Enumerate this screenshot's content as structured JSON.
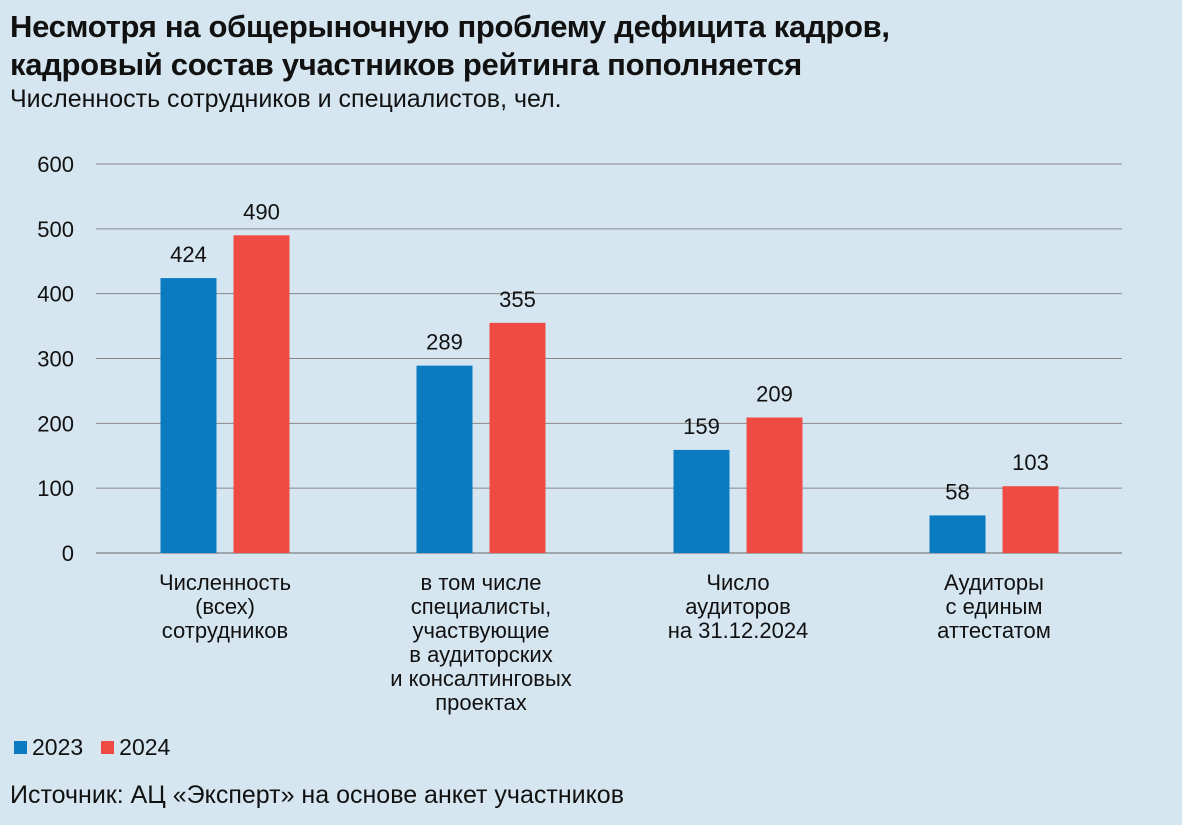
{
  "title_lines": [
    "Несмотря на общерыночную проблему дефицита кадров,",
    "кадровый состав участников рейтинга пополняется"
  ],
  "subtitle": "Численность сотрудников и специалистов, чел.",
  "source": "Источник: АЦ «Эксперт» на основе анкет участников",
  "colors": {
    "background": "#d6e6f0",
    "series_2023": "#0a7bc1",
    "series_2024": "#f04a45"
  },
  "chart_data": {
    "type": "bar",
    "title": "Несмотря на общерыночную проблему дефицита кадров, кадровый состав участников рейтинга пополняется",
    "ylim": [
      0,
      600
    ],
    "yticks": [
      0,
      100,
      200,
      300,
      400,
      500,
      600
    ],
    "grid": true,
    "legend_placement": "bottom-left",
    "categories": [
      [
        "Численность",
        "(всех)",
        "сотрудников"
      ],
      [
        "в том числе",
        "специалисты,",
        "участвующие",
        "в аудиторских",
        "и консалтинговых",
        "проектах"
      ],
      [
        "Число",
        "аудиторов",
        "на 31.12.2024"
      ],
      [
        "Аудиторы",
        "с единым",
        "аттестатом"
      ]
    ],
    "series": [
      {
        "name": "2023",
        "values": [
          424,
          289,
          159,
          58
        ]
      },
      {
        "name": "2024",
        "values": [
          490,
          355,
          209,
          103
        ]
      }
    ]
  }
}
